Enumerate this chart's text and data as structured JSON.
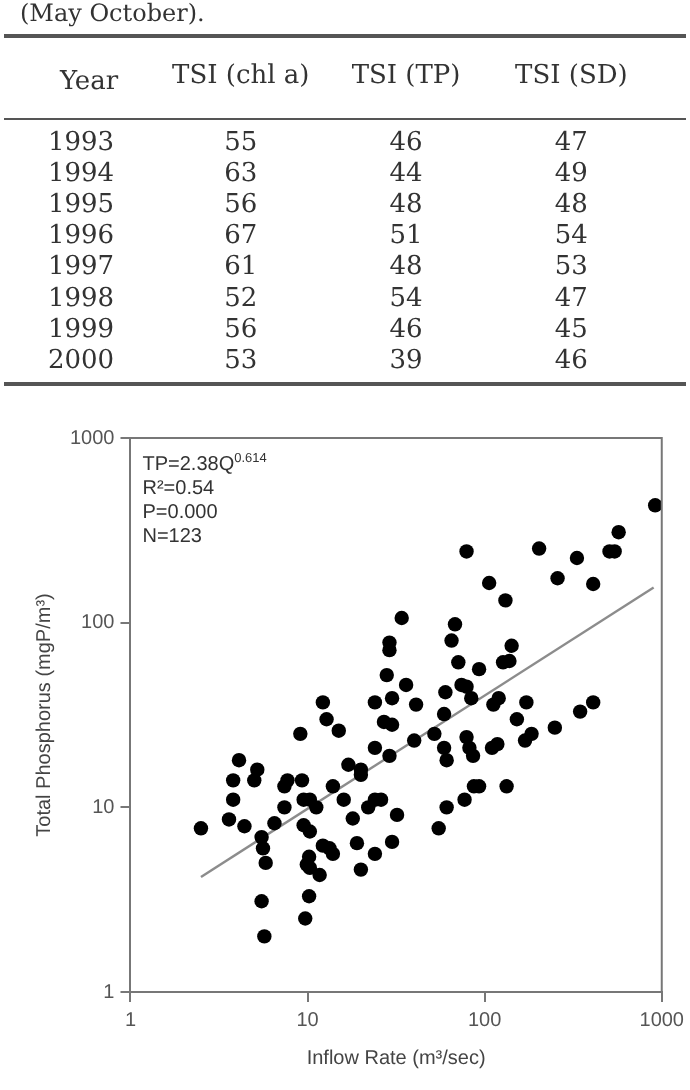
{
  "chart_data": [
    {
      "type": "heatmap",
      "title": "(May October).",
      "ylabel": "Year",
      "categories": [
        "TSI (chl a)",
        "TSI (TP)",
        "TSI (SD)"
      ],
      "y_categories": [
        "1993",
        "1994",
        "1995",
        "1996",
        "1997",
        "1998",
        "1999",
        "2000"
      ],
      "cells": [
        [
          55,
          46,
          47
        ],
        [
          63,
          44,
          49
        ],
        [
          56,
          48,
          48
        ],
        [
          67,
          51,
          54
        ],
        [
          61,
          48,
          53
        ],
        [
          52,
          54,
          47
        ],
        [
          56,
          46,
          45
        ],
        [
          53,
          39,
          46
        ]
      ],
      "data_labels": true
    },
    {
      "type": "scatter",
      "xlabel": "Inflow Rate (m³/sec)",
      "ylabel": "Total Phosphorus (mgP/m³)",
      "annotations": [
        "TP=2.38Q$^{0.614}$",
        "R²=0.54",
        "P=0.000",
        "N=123"
      ],
      "log": "xy",
      "xlim": [
        1,
        1000
      ],
      "ylim": [
        1,
        1000
      ],
      "xticks": [
        1,
        10,
        100,
        1000
      ],
      "yticks": [
        1,
        10,
        100,
        1000
      ],
      "grid": false,
      "series": [
        {
          "type": "scatter",
          "color": "#000000",
          "marker": "circle",
          "x": [
            918,
            571,
            507,
            542,
            332,
            203,
            79,
            258,
            410,
            106,
            131,
            34,
            68,
            29,
            29,
            65,
            142,
            127,
            138,
            71,
            93,
            28,
            36,
            74,
            79,
            60,
            24,
            30,
            41,
            84,
            120,
            112,
            172,
            410,
            346,
            27,
            30,
            59,
            152,
            249,
            52,
            40,
            79,
            82,
            110,
            118,
            169,
            184,
            24,
            59,
            29,
            61,
            86,
            20,
            20,
            87,
            93,
            133,
            61,
            77,
            55,
            32,
            24,
            26,
            22,
            18,
            19,
            30,
            24,
            20,
            2.5,
            3.6,
            4.4,
            3.8,
            3.8,
            5.0,
            5.2,
            7.4,
            7.7,
            9.3,
            7.4,
            6.5,
            5.5,
            5.6,
            5.8,
            5.5,
            5.7,
            9.5,
            10.3,
            9.7,
            10.2,
            10.2,
            9.9,
            10.3,
            11.7,
            12.2,
            13.3,
            13.9,
            10.3,
            11.2,
            9.5,
            13.9,
            16,
            12.2,
            12.8,
            15,
            9.1,
            17,
            4.1
          ],
          "values": [
            432,
            309,
            243,
            243,
            224,
            252,
            243,
            174,
            162,
            164,
            132,
            106,
            98,
            78,
            71,
            80,
            75,
            61,
            62,
            61,
            56,
            52,
            46,
            46,
            45,
            42,
            37,
            39,
            36,
            39,
            39,
            36,
            37,
            37,
            33,
            29,
            28,
            32,
            30,
            27,
            25,
            23,
            24,
            21,
            21,
            22,
            23,
            25,
            21,
            21,
            19,
            18,
            19,
            16,
            15,
            13,
            13,
            13,
            10,
            11,
            7.7,
            9.1,
            11,
            11,
            10,
            8.7,
            6.4,
            6.5,
            5.6,
            4.6,
            7.7,
            8.6,
            7.9,
            11,
            14,
            14,
            16,
            13,
            14,
            14,
            10,
            8.2,
            6.9,
            6.0,
            5.0,
            3.1,
            2.0,
            8.0,
            7.4,
            2.5,
            3.3,
            5.4,
            4.9,
            4.7,
            4.3,
            6.2,
            6.0,
            5.6,
            11,
            10,
            11,
            13,
            11,
            37,
            30,
            26,
            25,
            17,
            18
          ]
        },
        {
          "type": "line",
          "color": "#8c8c8c",
          "marker": "none",
          "x": [
            2.5,
            900
          ],
          "values": [
            4.2,
            155
          ]
        }
      ]
    }
  ]
}
